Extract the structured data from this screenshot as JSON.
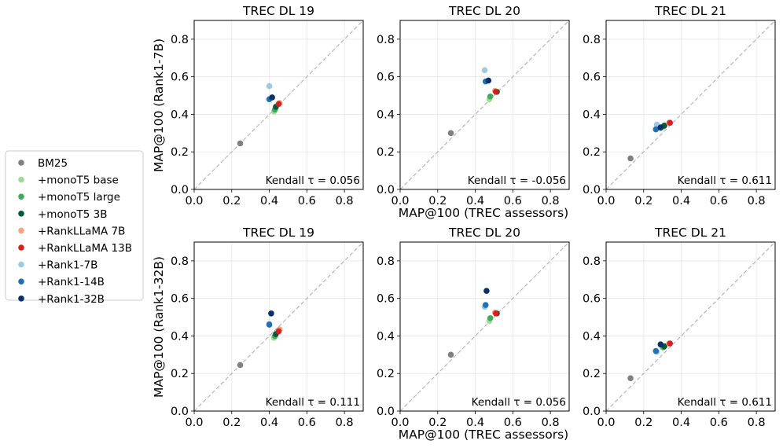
{
  "figure_labels": {
    "y_label_top": "MAP@100 (Rank1-7B)",
    "y_label_bottom": "MAP@100 (Rank1-32B)",
    "x_label_top": "MAP@100 (TREC assessors)",
    "x_label_bottom": "MAP@100 (TREC assessors)"
  },
  "legend": [
    {
      "label": "BM25",
      "color": "#808080"
    },
    {
      "label": "+monoT5 base",
      "color": "#a1d99b"
    },
    {
      "label": "+monoT5 large",
      "color": "#41ab5d"
    },
    {
      "label": "+monoT5 3B",
      "color": "#005a32"
    },
    {
      "label": "+RankLLaMA 7B",
      "color": "#f4a582"
    },
    {
      "label": "+RankLLaMA 13B",
      "color": "#d6201f"
    },
    {
      "label": "+Rank1-7B",
      "color": "#9ecae1"
    },
    {
      "label": "+Rank1-14B",
      "color": "#2171b5"
    },
    {
      "label": "+Rank1-32B",
      "color": "#08306b"
    }
  ],
  "chart_data": [
    {
      "type": "scatter",
      "title": "TREC DL 19",
      "xlim": [
        0,
        0.9
      ],
      "ylim": [
        0,
        0.9
      ],
      "xticks": [
        "0.0",
        "0.2",
        "0.4",
        "0.6",
        "0.8"
      ],
      "yticks": [
        "0.0",
        "0.2",
        "0.4",
        "0.6",
        "0.8"
      ],
      "annotation": "Kendall τ = 0.056",
      "points": [
        {
          "series": "BM25",
          "x": 0.245,
          "y": 0.245
        },
        {
          "series": "+monoT5 base",
          "x": 0.425,
          "y": 0.415
        },
        {
          "series": "+monoT5 large",
          "x": 0.43,
          "y": 0.425
        },
        {
          "series": "+monoT5 3B",
          "x": 0.435,
          "y": 0.44
        },
        {
          "series": "+RankLLaMA 7B",
          "x": 0.455,
          "y": 0.46
        },
        {
          "series": "+RankLLaMA 13B",
          "x": 0.45,
          "y": 0.455
        },
        {
          "series": "+Rank1-7B",
          "x": 0.4,
          "y": 0.55
        },
        {
          "series": "+Rank1-14B",
          "x": 0.4,
          "y": 0.48
        },
        {
          "series": "+Rank1-32B",
          "x": 0.415,
          "y": 0.49
        }
      ]
    },
    {
      "type": "scatter",
      "title": "TREC DL 20",
      "xlim": [
        0,
        0.9
      ],
      "ylim": [
        0,
        0.9
      ],
      "xticks": [
        "0.0",
        "0.2",
        "0.4",
        "0.6",
        "0.8"
      ],
      "yticks": [
        "0.0",
        "0.2",
        "0.4",
        "0.6",
        "0.8"
      ],
      "annotation": "Kendall τ = -0.056",
      "points": [
        {
          "series": "BM25",
          "x": 0.27,
          "y": 0.3
        },
        {
          "series": "+monoT5 base",
          "x": 0.475,
          "y": 0.48
        },
        {
          "series": "+monoT5 large",
          "x": 0.48,
          "y": 0.495
        },
        {
          "series": "+monoT5 3B",
          "x": 0.515,
          "y": 0.52
        },
        {
          "series": "+RankLLaMA 7B",
          "x": 0.505,
          "y": 0.525
        },
        {
          "series": "+RankLLaMA 13B",
          "x": 0.51,
          "y": 0.52
        },
        {
          "series": "+Rank1-7B",
          "x": 0.45,
          "y": 0.635
        },
        {
          "series": "+Rank1-14B",
          "x": 0.455,
          "y": 0.575
        },
        {
          "series": "+Rank1-32B",
          "x": 0.47,
          "y": 0.58
        }
      ]
    },
    {
      "type": "scatter",
      "title": "TREC DL 21",
      "xlim": [
        0,
        0.9
      ],
      "ylim": [
        0,
        0.9
      ],
      "xticks": [
        "0.0",
        "0.2",
        "0.4",
        "0.6",
        "0.8"
      ],
      "yticks": [
        "0.0",
        "0.2",
        "0.4",
        "0.6",
        "0.8"
      ],
      "annotation": "Kendall τ = 0.611",
      "points": [
        {
          "series": "BM25",
          "x": 0.13,
          "y": 0.165
        },
        {
          "series": "+monoT5 base",
          "x": 0.29,
          "y": 0.325
        },
        {
          "series": "+monoT5 large",
          "x": 0.305,
          "y": 0.335
        },
        {
          "series": "+monoT5 3B",
          "x": 0.31,
          "y": 0.34
        },
        {
          "series": "+RankLLaMA 7B",
          "x": 0.335,
          "y": 0.355
        },
        {
          "series": "+RankLLaMA 13B",
          "x": 0.34,
          "y": 0.355
        },
        {
          "series": "+Rank1-7B",
          "x": 0.27,
          "y": 0.345
        },
        {
          "series": "+Rank1-14B",
          "x": 0.265,
          "y": 0.32
        },
        {
          "series": "+Rank1-32B",
          "x": 0.29,
          "y": 0.33
        }
      ]
    },
    {
      "type": "scatter",
      "title": "TREC DL 19",
      "xlim": [
        0,
        0.9
      ],
      "ylim": [
        0,
        0.9
      ],
      "xticks": [
        "0.0",
        "0.2",
        "0.4",
        "0.6",
        "0.8"
      ],
      "yticks": [
        "0.0",
        "0.2",
        "0.4",
        "0.6",
        "0.8"
      ],
      "annotation": "Kendall τ = 0.111",
      "points": [
        {
          "series": "BM25",
          "x": 0.245,
          "y": 0.245
        },
        {
          "series": "+monoT5 base",
          "x": 0.425,
          "y": 0.39
        },
        {
          "series": "+monoT5 large",
          "x": 0.43,
          "y": 0.4
        },
        {
          "series": "+monoT5 3B",
          "x": 0.435,
          "y": 0.41
        },
        {
          "series": "+RankLLaMA 7B",
          "x": 0.455,
          "y": 0.435
        },
        {
          "series": "+RankLLaMA 13B",
          "x": 0.45,
          "y": 0.425
        },
        {
          "series": "+Rank1-7B",
          "x": 0.4,
          "y": 0.465
        },
        {
          "series": "+Rank1-14B",
          "x": 0.4,
          "y": 0.46
        },
        {
          "series": "+Rank1-32B",
          "x": 0.41,
          "y": 0.52
        }
      ]
    },
    {
      "type": "scatter",
      "title": "TREC DL 20",
      "xlim": [
        0,
        0.9
      ],
      "ylim": [
        0,
        0.9
      ],
      "xticks": [
        "0.0",
        "0.2",
        "0.4",
        "0.6",
        "0.8"
      ],
      "yticks": [
        "0.0",
        "0.2",
        "0.4",
        "0.6",
        "0.8"
      ],
      "annotation": "Kendall τ = 0.056",
      "points": [
        {
          "series": "BM25",
          "x": 0.27,
          "y": 0.3
        },
        {
          "series": "+monoT5 base",
          "x": 0.475,
          "y": 0.48
        },
        {
          "series": "+monoT5 large",
          "x": 0.48,
          "y": 0.495
        },
        {
          "series": "+monoT5 3B",
          "x": 0.515,
          "y": 0.52
        },
        {
          "series": "+RankLLaMA 7B",
          "x": 0.505,
          "y": 0.525
        },
        {
          "series": "+RankLLaMA 13B",
          "x": 0.51,
          "y": 0.52
        },
        {
          "series": "+Rank1-7B",
          "x": 0.45,
          "y": 0.555
        },
        {
          "series": "+Rank1-14B",
          "x": 0.455,
          "y": 0.565
        },
        {
          "series": "+Rank1-32B",
          "x": 0.46,
          "y": 0.64
        }
      ]
    },
    {
      "type": "scatter",
      "title": "TREC DL 21",
      "xlim": [
        0,
        0.9
      ],
      "ylim": [
        0,
        0.9
      ],
      "xticks": [
        "0.0",
        "0.2",
        "0.4",
        "0.6",
        "0.8"
      ],
      "yticks": [
        "0.0",
        "0.2",
        "0.4",
        "0.6",
        "0.8"
      ],
      "annotation": "Kendall τ = 0.611",
      "points": [
        {
          "series": "BM25",
          "x": 0.13,
          "y": 0.175
        },
        {
          "series": "+monoT5 base",
          "x": 0.3,
          "y": 0.34
        },
        {
          "series": "+monoT5 large",
          "x": 0.305,
          "y": 0.34
        },
        {
          "series": "+monoT5 3B",
          "x": 0.31,
          "y": 0.345
        },
        {
          "series": "+RankLLaMA 7B",
          "x": 0.335,
          "y": 0.36
        },
        {
          "series": "+RankLLaMA 13B",
          "x": 0.34,
          "y": 0.36
        },
        {
          "series": "+Rank1-7B",
          "x": 0.27,
          "y": 0.315
        },
        {
          "series": "+Rank1-14B",
          "x": 0.265,
          "y": 0.32
        },
        {
          "series": "+Rank1-32B",
          "x": 0.29,
          "y": 0.355
        }
      ]
    }
  ]
}
